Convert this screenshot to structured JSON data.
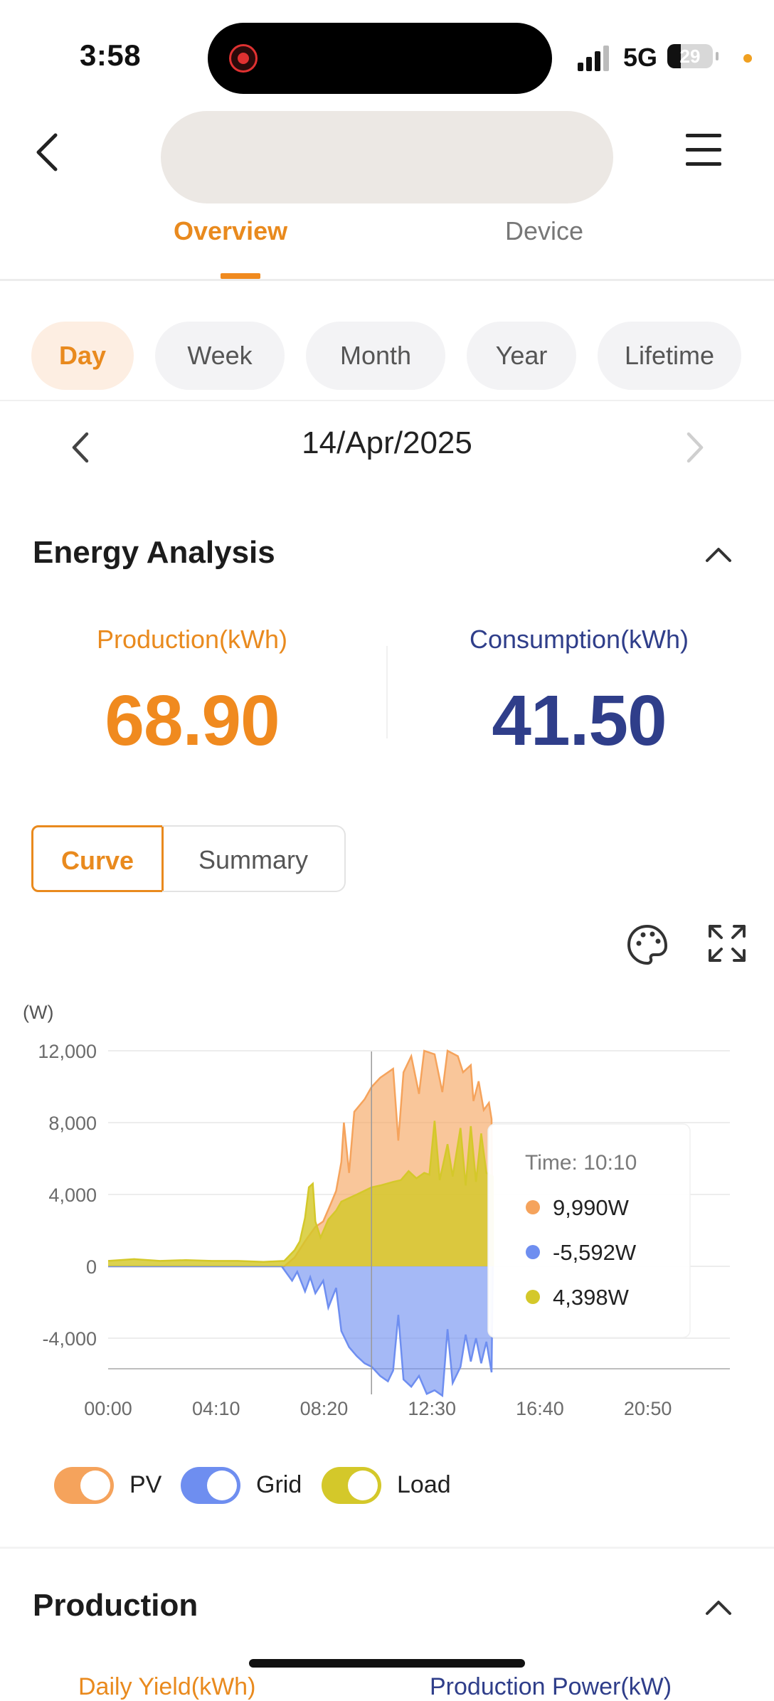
{
  "status_bar": {
    "time": "3:58",
    "network": "5G",
    "battery": "29",
    "battery_level": 0.29
  },
  "tabs": [
    {
      "label": "Overview",
      "active": true
    },
    {
      "label": "Device",
      "active": false
    }
  ],
  "periods": [
    "Day",
    "Week",
    "Month",
    "Year",
    "Lifetime"
  ],
  "active_period": "Day",
  "date": "14/Apr/2025",
  "energy_analysis": {
    "title": "Energy Analysis",
    "production_label": "Production(kWh)",
    "production_value": "68.90",
    "consumption_label": "Consumption(kWh)",
    "consumption_value": "41.50"
  },
  "view_toggle": {
    "curve": "Curve",
    "summary": "Summary",
    "active": "Curve"
  },
  "chart_data": {
    "type": "area",
    "ylabel": "(W)",
    "ylim": [
      -6000,
      12000
    ],
    "yticks": [
      -4000,
      0,
      4000,
      8000,
      12000
    ],
    "ytick_labels": [
      "-4,000",
      "0",
      "4,000",
      "8,000",
      "12,000"
    ],
    "xtick_labels": [
      "00:00",
      "04:10",
      "08:20",
      "12:30",
      "16:40",
      "20:50"
    ],
    "xtick_hours": [
      0,
      4.1667,
      8.3333,
      12.5,
      16.6667,
      20.8333
    ],
    "xrange_hours": [
      0,
      24
    ],
    "series": [
      {
        "name": "PV",
        "color": "#f5a35c",
        "points": [
          [
            0,
            0
          ],
          [
            6.8,
            0
          ],
          [
            7.2,
            500
          ],
          [
            7.6,
            1400
          ],
          [
            8.0,
            2200
          ],
          [
            8.3,
            2500
          ],
          [
            8.6,
            3500
          ],
          [
            8.8,
            4200
          ],
          [
            9.0,
            5800
          ],
          [
            9.1,
            8000
          ],
          [
            9.3,
            5200
          ],
          [
            9.5,
            8600
          ],
          [
            9.9,
            9300
          ],
          [
            10.17,
            9990
          ],
          [
            10.5,
            10500
          ],
          [
            11.0,
            11000
          ],
          [
            11.2,
            7000
          ],
          [
            11.4,
            10800
          ],
          [
            11.7,
            11700
          ],
          [
            12.0,
            9600
          ],
          [
            12.2,
            12000
          ],
          [
            12.6,
            11800
          ],
          [
            12.9,
            9700
          ],
          [
            13.1,
            12000
          ],
          [
            13.5,
            11700
          ],
          [
            13.7,
            10800
          ],
          [
            14.0,
            11200
          ],
          [
            14.1,
            9200
          ],
          [
            14.3,
            10300
          ],
          [
            14.5,
            8700
          ],
          [
            14.7,
            9100
          ],
          [
            14.8,
            8200
          ],
          [
            14.85,
            0
          ]
        ]
      },
      {
        "name": "Grid",
        "color": "#6e8ef0",
        "points": [
          [
            0,
            0
          ],
          [
            6.7,
            0
          ],
          [
            6.9,
            -400
          ],
          [
            7.1,
            -800
          ],
          [
            7.3,
            -300
          ],
          [
            7.6,
            -1400
          ],
          [
            7.8,
            -600
          ],
          [
            8.0,
            -1500
          ],
          [
            8.3,
            -800
          ],
          [
            8.5,
            -2300
          ],
          [
            8.8,
            -1200
          ],
          [
            9.0,
            -3600
          ],
          [
            9.3,
            -4500
          ],
          [
            9.6,
            -5000
          ],
          [
            9.9,
            -5400
          ],
          [
            10.17,
            -5592
          ],
          [
            10.5,
            -6100
          ],
          [
            10.8,
            -6400
          ],
          [
            11.0,
            -5800
          ],
          [
            11.2,
            -2700
          ],
          [
            11.4,
            -6300
          ],
          [
            11.7,
            -6700
          ],
          [
            12.0,
            -6100
          ],
          [
            12.3,
            -7100
          ],
          [
            12.6,
            -6900
          ],
          [
            12.9,
            -7200
          ],
          [
            13.1,
            -3500
          ],
          [
            13.3,
            -6500
          ],
          [
            13.6,
            -5600
          ],
          [
            13.8,
            -3800
          ],
          [
            14.0,
            -5300
          ],
          [
            14.2,
            -4000
          ],
          [
            14.4,
            -5400
          ],
          [
            14.6,
            -4200
          ],
          [
            14.8,
            -5900
          ],
          [
            14.85,
            0
          ]
        ]
      },
      {
        "name": "Load",
        "color": "#d4c82a",
        "points": [
          [
            0,
            300
          ],
          [
            1,
            400
          ],
          [
            2,
            300
          ],
          [
            3,
            350
          ],
          [
            4,
            300
          ],
          [
            5,
            300
          ],
          [
            6,
            250
          ],
          [
            6.8,
            300
          ],
          [
            7.2,
            900
          ],
          [
            7.4,
            1400
          ],
          [
            7.6,
            2700
          ],
          [
            7.75,
            4400
          ],
          [
            7.9,
            4600
          ],
          [
            8.0,
            2500
          ],
          [
            8.2,
            1600
          ],
          [
            8.5,
            2600
          ],
          [
            8.8,
            3100
          ],
          [
            9.0,
            3600
          ],
          [
            9.3,
            3800
          ],
          [
            9.6,
            4000
          ],
          [
            10.17,
            4398
          ],
          [
            10.5,
            4500
          ],
          [
            11.0,
            4700
          ],
          [
            11.3,
            4800
          ],
          [
            11.6,
            5300
          ],
          [
            11.9,
            4900
          ],
          [
            12.2,
            5200
          ],
          [
            12.4,
            5100
          ],
          [
            12.6,
            8100
          ],
          [
            12.8,
            4800
          ],
          [
            13.1,
            6800
          ],
          [
            13.3,
            5000
          ],
          [
            13.6,
            7700
          ],
          [
            13.8,
            4500
          ],
          [
            14.0,
            7800
          ],
          [
            14.2,
            4700
          ],
          [
            14.4,
            7400
          ],
          [
            14.6,
            5200
          ],
          [
            14.85,
            5000
          ],
          [
            14.86,
            0
          ]
        ]
      }
    ],
    "tooltip": {
      "time_label": "Time: 10:10",
      "time_hours": 10.1667,
      "values": [
        "9,990W",
        "-5,592W",
        "4,398W"
      ]
    },
    "legend": [
      {
        "name": "PV",
        "color": "#f5a35c",
        "enabled": true
      },
      {
        "name": "Grid",
        "color": "#6e8ef0",
        "enabled": true
      },
      {
        "name": "Load",
        "color": "#d4c82a",
        "enabled": true
      }
    ]
  },
  "production_section": {
    "title": "Production"
  },
  "bottom_peek": {
    "left": "Daily Yield(kWh)",
    "right": "Production Power(kW)"
  }
}
